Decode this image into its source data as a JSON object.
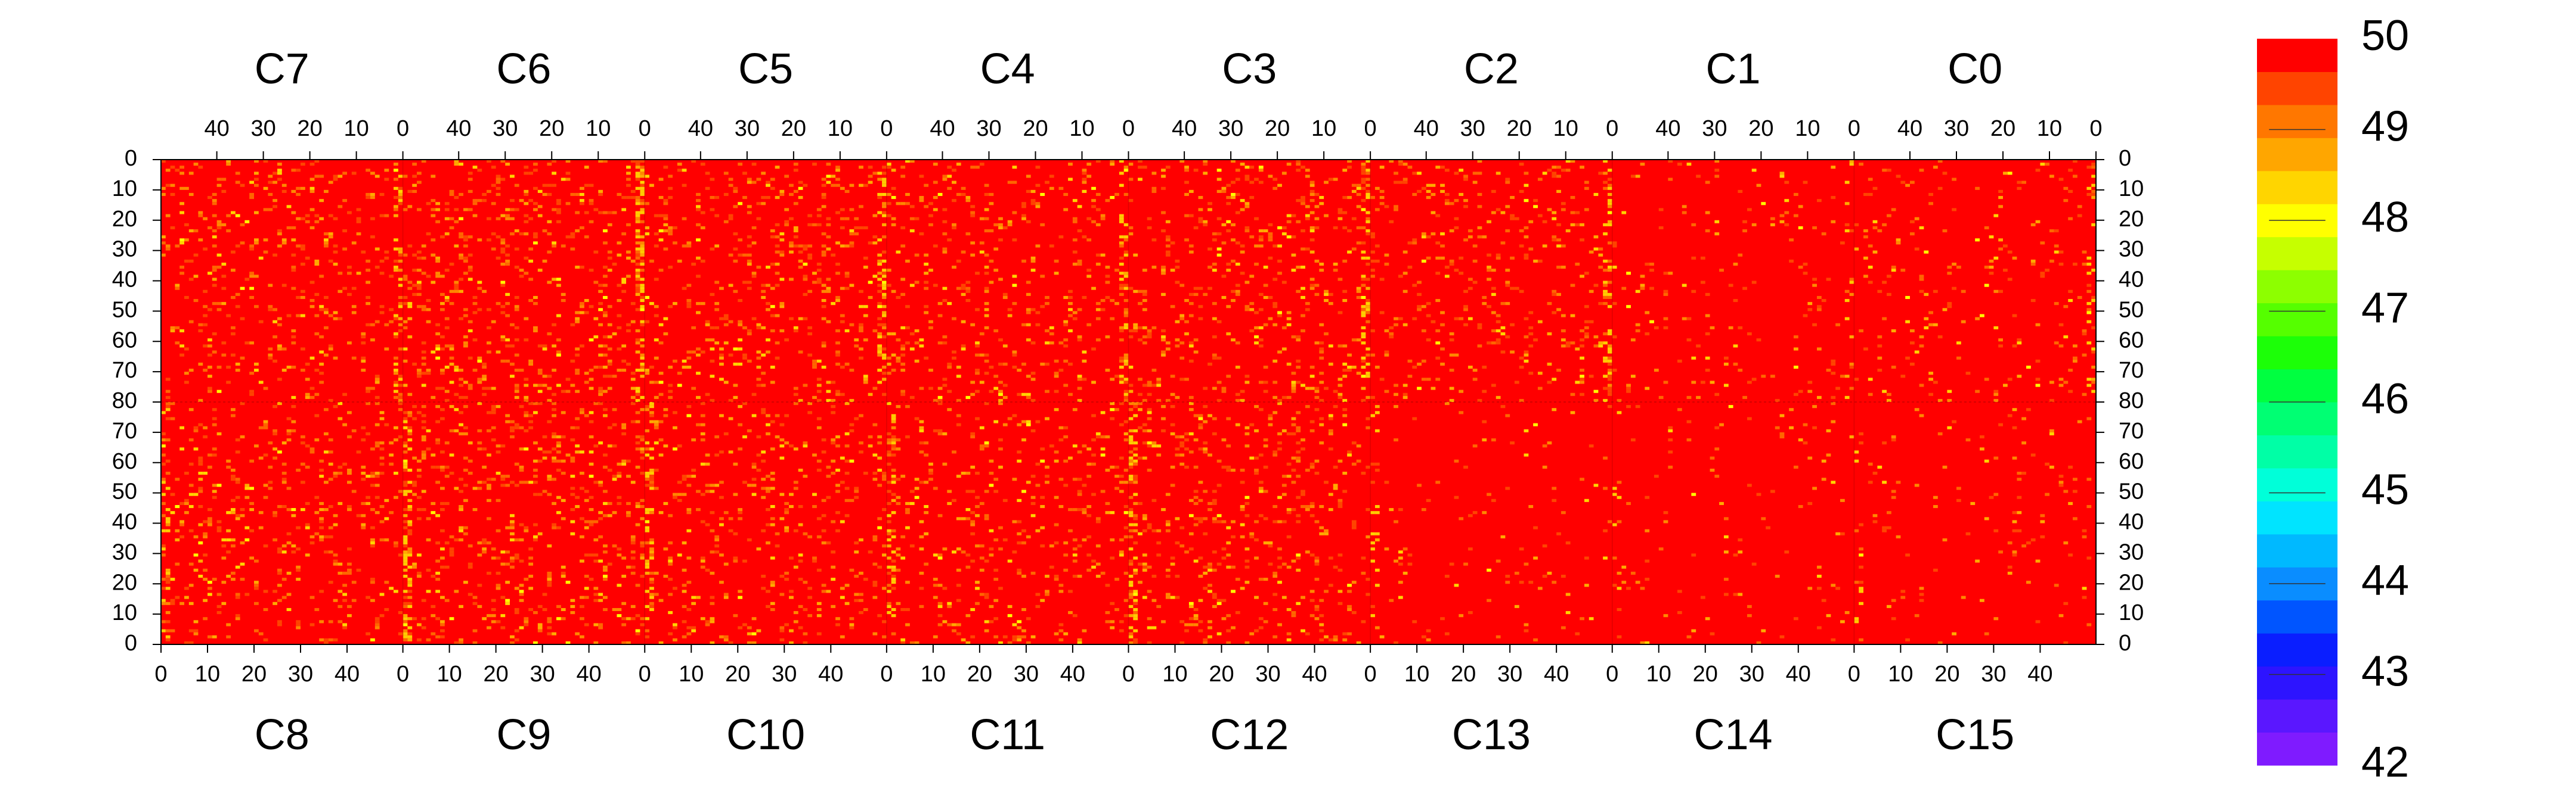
{
  "chart_data": {
    "type": "heatmap",
    "title": "",
    "value_range": [
      42,
      50
    ],
    "colorbar_ticks": [
      42,
      43,
      44,
      45,
      46,
      47,
      48,
      49,
      50
    ],
    "colorbar_colors": [
      "#7f1bff",
      "#5a17ff",
      "#2d14ff",
      "#0a1eff",
      "#0055ff",
      "#0a8dff",
      "#00b9ff",
      "#00e4ff",
      "#00ffd9",
      "#00ffa6",
      "#00ff73",
      "#00ff40",
      "#1cff08",
      "#55ff00",
      "#8dff00",
      "#c6ff00",
      "#ffff00",
      "#ffd500",
      "#ffa600",
      "#ff7700",
      "#ff4400",
      "#ff0000"
    ],
    "top_chips": [
      "C7",
      "C6",
      "C5",
      "C4",
      "C3",
      "C2",
      "C1",
      "C0"
    ],
    "bottom_chips": [
      "C8",
      "C9",
      "C10",
      "C11",
      "C12",
      "C13",
      "C14",
      "C15"
    ],
    "top_col_ticks": [
      "40",
      "30",
      "20",
      "10",
      "0"
    ],
    "bottom_col_ticks": [
      "0",
      "10",
      "20",
      "30",
      "40"
    ],
    "row_ticks_top_half": [
      "0",
      "10",
      "20",
      "30",
      "40",
      "50",
      "60",
      "70",
      "80"
    ],
    "row_ticks_bottom_half": [
      "70",
      "60",
      "50",
      "40",
      "30",
      "20",
      "10",
      "0"
    ],
    "columns_per_chip": 52,
    "rows_per_half": 80,
    "chip_noise_density": {
      "C7": 0.1,
      "C6": 0.13,
      "C5": 0.11,
      "C4": 0.1,
      "C3": 0.11,
      "C2": 0.09,
      "C1": 0.04,
      "C0": 0.05,
      "C8": 0.1,
      "C9": 0.13,
      "C10": 0.1,
      "C11": 0.1,
      "C12": 0.11,
      "C13": 0.03,
      "C14": 0.03,
      "C15": 0.03
    },
    "background_value": 50,
    "grid": false
  }
}
